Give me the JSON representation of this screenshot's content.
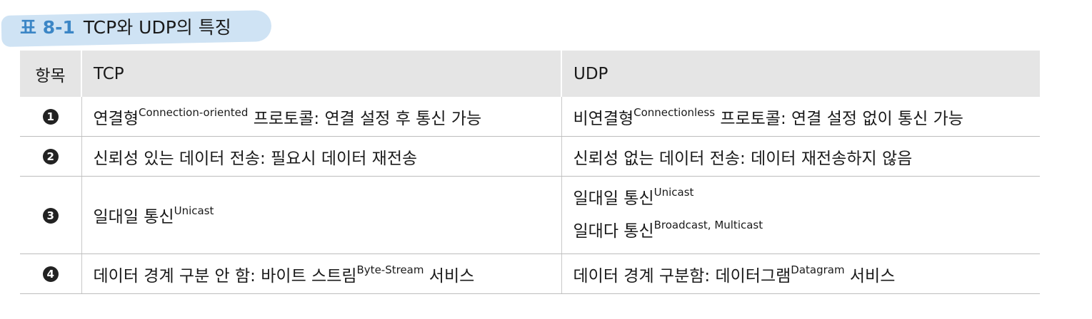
{
  "caption": {
    "number": "표 8-1",
    "title": "TCP와 UDP의 특징"
  },
  "table": {
    "headers": {
      "item": "항목",
      "tcp": "TCP",
      "udp": "UDP"
    },
    "rows": [
      {
        "num": "1",
        "tcp": {
          "pre": "연결형",
          "sup": "Connection-oriented",
          "post": " 프로토콜: 연결 설정 후 통신 가능"
        },
        "udp": {
          "pre": "비연결형",
          "sup": "Connectionless",
          "post": " 프로토콜: 연결 설정 없이 통신 가능"
        }
      },
      {
        "num": "2",
        "tcp": {
          "text": "신뢰성 있는 데이터 전송: 필요시 데이터 재전송"
        },
        "udp": {
          "text": "신뢰성 없는 데이터 전송: 데이터 재전송하지 않음"
        }
      },
      {
        "num": "3",
        "tcp": {
          "pre": "일대일 통신",
          "sup": "Unicast"
        },
        "udp": {
          "line1_pre": "일대일 통신",
          "line1_sup": "Unicast",
          "line2_pre": "일대다 통신",
          "line2_sup": "Broadcast, Multicast"
        }
      },
      {
        "num": "4",
        "tcp": {
          "pre": "데이터 경계 구분 안 함: 바이트 스트림",
          "sup": "Byte-Stream",
          "post": " 서비스"
        },
        "udp": {
          "pre": "데이터 경계 구분함: 데이터그램",
          "sup": "Datagram",
          "post": " 서비스"
        }
      }
    ]
  },
  "colors": {
    "caption_accent": "#3b86c6",
    "caption_highlight": "#cfe3f4",
    "header_bg": "#e5e5e5",
    "badge": "#222222"
  }
}
